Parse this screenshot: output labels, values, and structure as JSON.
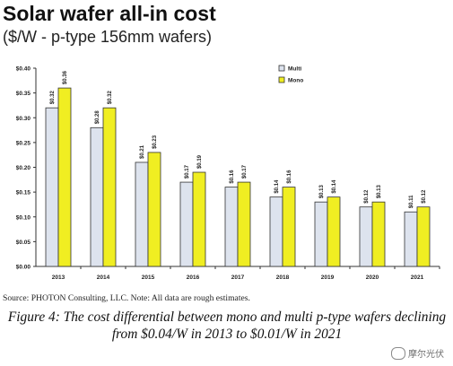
{
  "header": {
    "title": "Solar wafer all-in cost",
    "subtitle": "($/W - p-type 156mm wafers)"
  },
  "chart_data": {
    "type": "bar",
    "categories": [
      "2013",
      "2014",
      "2015",
      "2016",
      "2017",
      "2018",
      "2019",
      "2020",
      "2021"
    ],
    "series": [
      {
        "name": "Multi",
        "color": "#dde3ee",
        "values": [
          0.32,
          0.28,
          0.21,
          0.17,
          0.16,
          0.14,
          0.13,
          0.12,
          0.11
        ],
        "labels": [
          "$0.32",
          "$0.28",
          "$0.21",
          "$0.17",
          "$0.16",
          "$0.14",
          "$0.13",
          "$0.12",
          "$0.11"
        ]
      },
      {
        "name": "Mono",
        "color": "#f0ee22",
        "values": [
          0.36,
          0.32,
          0.23,
          0.19,
          0.17,
          0.16,
          0.14,
          0.13,
          0.12
        ],
        "labels": [
          "$0.36",
          "$0.32",
          "$0.23",
          "$0.19",
          "$0.17",
          "$0.16",
          "$0.14",
          "$0.13",
          "$0.12"
        ]
      }
    ],
    "ylim": [
      0,
      0.4
    ],
    "yticks": [
      0.0,
      0.05,
      0.1,
      0.15,
      0.2,
      0.25,
      0.3,
      0.35,
      0.4
    ],
    "ytick_labels": [
      "$0.00",
      "$0.05",
      "$0.10",
      "$0.15",
      "$0.20",
      "$0.25",
      "$0.30",
      "$0.35",
      "$0.40"
    ],
    "grid": false,
    "legend": "top-center-right"
  },
  "footer": {
    "source": "Source: PHOTON Consulting, LLC. Note: All data are rough estimates.",
    "caption": "Figure 4: The cost differential between mono and multi p-type wafers declining from $0.04/W in 2013 to $0.01/W in 2021",
    "watermark": "摩尔光伏"
  }
}
